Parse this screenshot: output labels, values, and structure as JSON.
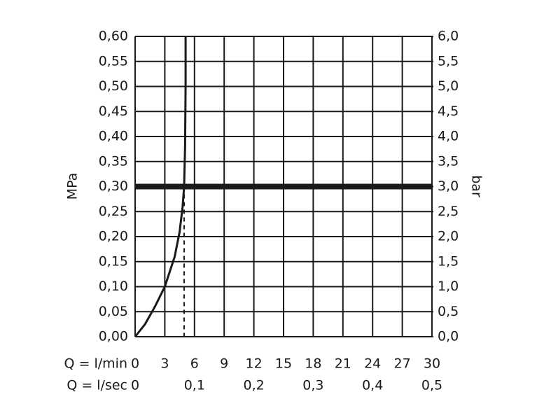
{
  "chart_data": {
    "type": "line",
    "y_label": "MPa",
    "y2_label": "bar",
    "x_label": "Q = l/min",
    "x2_label": "Q = l/sec",
    "x": [
      0,
      1,
      2,
      3,
      4,
      4.5,
      4.8,
      4.95,
      5.05,
      5.1,
      5.1
    ],
    "series": [
      {
        "color": "#1a1a1a",
        "values": [
          0,
          0.025,
          0.06,
          0.1,
          0.16,
          0.21,
          0.26,
          0.3,
          0.38,
          0.5,
          0.6
        ]
      }
    ],
    "xlim": [
      0,
      30
    ],
    "xticks": [
      0,
      3,
      6,
      9,
      12,
      15,
      18,
      21,
      24,
      27,
      30
    ],
    "x2lim": [
      0,
      0.5
    ],
    "x2ticks": [
      {
        "value": 0,
        "label": "0"
      },
      {
        "value": 0.1,
        "label": "0,1"
      },
      {
        "value": 0.2,
        "label": "0,2"
      },
      {
        "value": 0.3,
        "label": "0,3"
      },
      {
        "value": 0.4,
        "label": "0,4"
      },
      {
        "value": 0.5,
        "label": "0,5"
      }
    ],
    "ylim": [
      0,
      0.6
    ],
    "yticks": [
      {
        "value": 0,
        "label": "0,00"
      },
      {
        "value": 0.05,
        "label": "0,05"
      },
      {
        "value": 0.1,
        "label": "0,10"
      },
      {
        "value": 0.15,
        "label": "0,15"
      },
      {
        "value": 0.2,
        "label": "0,20"
      },
      {
        "value": 0.25,
        "label": "0,25"
      },
      {
        "value": 0.3,
        "label": "0,30"
      },
      {
        "value": 0.35,
        "label": "0,35"
      },
      {
        "value": 0.4,
        "label": "0,40"
      },
      {
        "value": 0.45,
        "label": "0,45"
      },
      {
        "value": 0.5,
        "label": "0,50"
      },
      {
        "value": 0.55,
        "label": "0,55"
      },
      {
        "value": 0.6,
        "label": "0,60"
      }
    ],
    "y2lim": [
      0,
      6
    ],
    "y2ticks": [
      {
        "value": 0,
        "label": "0,0"
      },
      {
        "value": 0.5,
        "label": "0,5"
      },
      {
        "value": 1,
        "label": "1,0"
      },
      {
        "value": 1.5,
        "label": "1,5"
      },
      {
        "value": 2,
        "label": "2,0"
      },
      {
        "value": 2.5,
        "label": "2,5"
      },
      {
        "value": 3,
        "label": "3,0"
      },
      {
        "value": 3.5,
        "label": "3,5"
      },
      {
        "value": 4,
        "label": "4,0"
      },
      {
        "value": 4.5,
        "label": "4,5"
      },
      {
        "value": 5,
        "label": "5,0"
      },
      {
        "value": 5.5,
        "label": "5,5"
      },
      {
        "value": 6,
        "label": "6,0"
      }
    ],
    "reference_y": 0.3,
    "reference_x": 4.95,
    "grid": true
  }
}
